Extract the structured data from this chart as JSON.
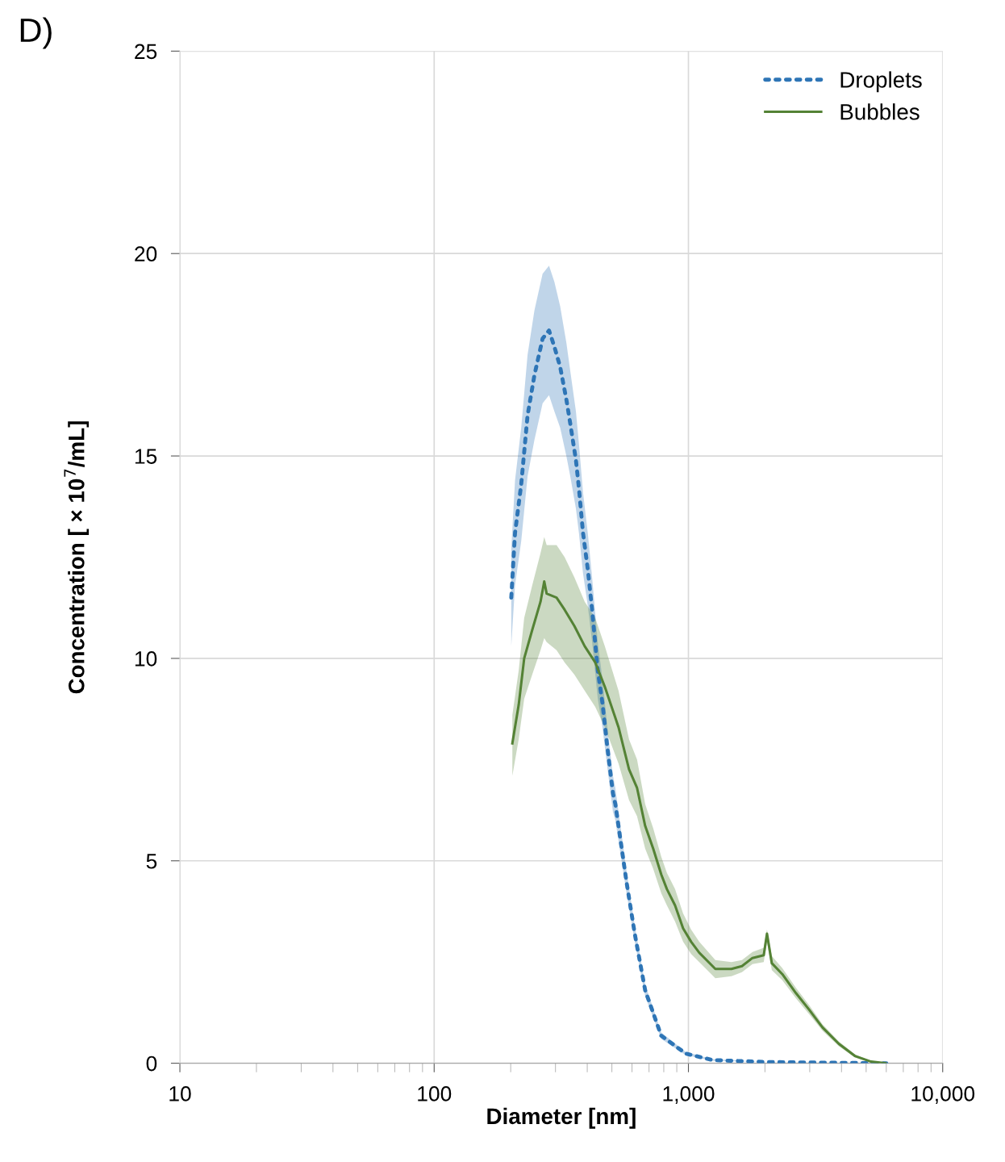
{
  "chart_data": {
    "type": "line",
    "xlabel": "Diameter [nm]",
    "ylabel": "Concentration [ × 10$^{7}$/mL]",
    "annotations": [
      "D)"
    ],
    "log": "x",
    "xlim": [
      10,
      10000
    ],
    "xticks": [
      10,
      100,
      {
        "value": 1000,
        "label": "1,000"
      },
      {
        "value": 10000,
        "label": "10,000"
      }
    ],
    "ylim": [
      0,
      25
    ],
    "yticks": [
      0,
      5,
      10,
      15,
      20,
      25
    ],
    "grid": true,
    "legend": "top right",
    "series": [
      {
        "name": "Droplets",
        "color": "#2e75b6",
        "line_style": "dotted",
        "x": [
          201,
          208,
          220,
          233,
          248,
          267,
          283,
          297,
          313,
          331,
          343,
          361,
          371,
          385,
          402,
          418,
          440,
          459,
          480,
          505,
          516,
          571,
          615,
          676,
          782,
          975,
          1240,
          2000,
          4000,
          6000
        ],
        "values": [
          11.5,
          13.1,
          14.3,
          16.0,
          17.0,
          17.9,
          18.1,
          17.7,
          17.2,
          16.4,
          15.8,
          14.9,
          14.2,
          13.1,
          12.2,
          11.2,
          9.7,
          8.9,
          7.8,
          6.66,
          6.4,
          4.47,
          3.2,
          1.8,
          0.68,
          0.24,
          0.08,
          0.03,
          0.01,
          0
        ],
        "lower": [
          10.3,
          11.8,
          12.9,
          14.5,
          15.4,
          16.3,
          16.5,
          16.1,
          15.7,
          15.0,
          14.5,
          13.7,
          13.1,
          12.1,
          11.3,
          10.4,
          9.0,
          8.3,
          7.3,
          6.2,
          6.0,
          4.2,
          3.0,
          1.65,
          0.6,
          0.2,
          0.06,
          0.03,
          0.01,
          0
        ],
        "upper": [
          12.7,
          14.4,
          15.7,
          17.5,
          18.6,
          19.5,
          19.7,
          19.3,
          18.7,
          17.8,
          17.1,
          16.1,
          15.3,
          14.1,
          13.1,
          12.0,
          10.4,
          9.5,
          8.3,
          7.1,
          6.8,
          4.75,
          3.4,
          1.95,
          0.76,
          0.28,
          0.1,
          0.03,
          0.01,
          0
        ]
      },
      {
        "name": "Bubbles",
        "color": "#548235",
        "line_style": "solid",
        "x": [
          203,
          215,
          226,
          243,
          262,
          271,
          277,
          303,
          326,
          356,
          391,
          430,
          469,
          531,
          584,
          628,
          676,
          727,
          782,
          823,
          886,
          953,
          1025,
          1103,
          1276,
          1477,
          1624,
          1786,
          1978,
          2037,
          2128,
          2340,
          2649,
          2978,
          3371,
          3903,
          4514,
          5224,
          5958
        ],
        "values": [
          7.9,
          8.85,
          10.0,
          10.7,
          11.4,
          11.9,
          11.6,
          11.5,
          11.2,
          10.8,
          10.3,
          9.9,
          9.3,
          8.3,
          7.26,
          6.8,
          5.86,
          5.3,
          4.66,
          4.3,
          3.9,
          3.33,
          3.0,
          2.73,
          2.33,
          2.33,
          2.4,
          2.6,
          2.67,
          3.2,
          2.47,
          2.2,
          1.73,
          1.33,
          0.88,
          0.48,
          0.18,
          0.04,
          0
        ],
        "lower": [
          7.1,
          8.0,
          9.0,
          9.6,
          10.2,
          10.5,
          10.4,
          10.2,
          9.9,
          9.6,
          9.2,
          8.8,
          8.3,
          7.4,
          6.5,
          6.1,
          5.3,
          4.8,
          4.2,
          3.9,
          3.5,
          3.0,
          2.7,
          2.5,
          2.1,
          2.15,
          2.25,
          2.45,
          2.5,
          3.0,
          2.3,
          2.05,
          1.6,
          1.22,
          0.8,
          0.42,
          0.14,
          0.02,
          0
        ],
        "upper": [
          8.6,
          9.7,
          11.0,
          11.8,
          12.6,
          13.0,
          12.8,
          12.8,
          12.5,
          12.0,
          11.4,
          11.0,
          10.3,
          9.2,
          8.0,
          7.5,
          6.4,
          5.8,
          5.1,
          4.7,
          4.3,
          3.7,
          3.3,
          3.0,
          2.55,
          2.5,
          2.55,
          2.75,
          2.85,
          3.3,
          2.65,
          2.35,
          1.86,
          1.44,
          0.96,
          0.54,
          0.22,
          0.06,
          0
        ]
      }
    ]
  }
}
